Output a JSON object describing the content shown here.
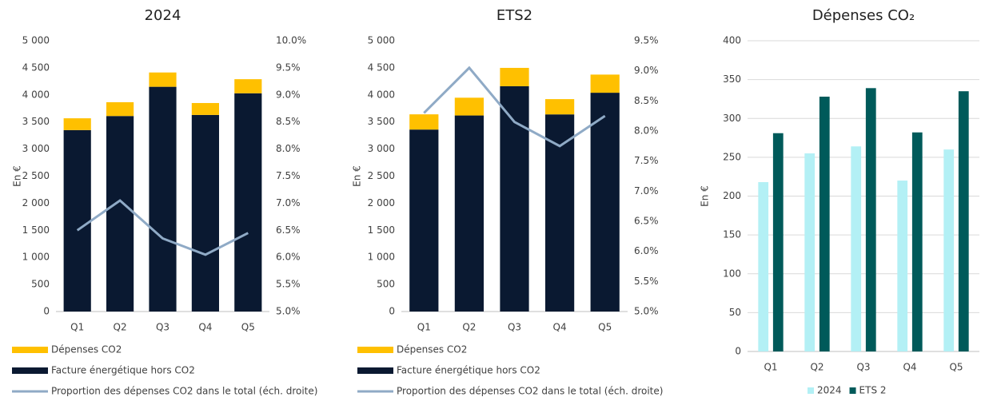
{
  "chart_data": [
    {
      "type": "bar",
      "stacked": true,
      "title": "2024",
      "y_label": "En €",
      "categories": [
        "Q1",
        "Q2",
        "Q3",
        "Q4",
        "Q5"
      ],
      "series": [
        {
          "name": "Facture énergétique hors CO2",
          "color": "#0a1931",
          "values": [
            3350,
            3610,
            4150,
            3630,
            4030
          ]
        },
        {
          "name": "Dépenses CO2",
          "color": "#ffc000",
          "values": [
            218,
            255,
            264,
            220,
            260
          ]
        },
        {
          "name": "Proportion des dépenses CO2 dans le total (éch. droite)",
          "type": "line",
          "axis": "y2",
          "color": "#8faac6",
          "values": [
            6.5,
            7.05,
            6.35,
            6.05,
            6.45
          ]
        }
      ],
      "ylim": [
        0,
        5000
      ],
      "yticks": [
        0,
        500,
        {
          "value": 1000,
          "label": "1 000"
        },
        {
          "value": 1500,
          "label": "1 500"
        },
        {
          "value": 2000,
          "label": "2 000"
        },
        {
          "value": 2500,
          "label": "2 500"
        },
        {
          "value": 3000,
          "label": "3 000"
        },
        {
          "value": 3500,
          "label": "3 500"
        },
        {
          "value": 4000,
          "label": "4 000"
        },
        {
          "value": 4500,
          "label": "4 500"
        },
        {
          "value": 5000,
          "label": "5 000"
        }
      ],
      "y2lim": [
        5.0,
        10.0
      ],
      "y2ticks": [
        {
          "value": 5.0,
          "label": "5.0%"
        },
        {
          "value": 5.5,
          "label": "5.5%"
        },
        {
          "value": 6.0,
          "label": "6.0%"
        },
        {
          "value": 6.5,
          "label": "6.5%"
        },
        {
          "value": 7.0,
          "label": "7.0%"
        },
        {
          "value": 7.5,
          "label": "7.5%"
        },
        {
          "value": 8.0,
          "label": "8.0%"
        },
        {
          "value": 8.5,
          "label": "8.5%"
        },
        {
          "value": 9.0,
          "label": "9.0%"
        },
        {
          "value": 9.5,
          "label": "9.5%"
        },
        {
          "value": 10.0,
          "label": "10.0%"
        }
      ],
      "grid": false,
      "legend": "bottom"
    },
    {
      "type": "bar",
      "stacked": true,
      "title": "ETS2",
      "y_label": "En €",
      "categories": [
        "Q1",
        "Q2",
        "Q3",
        "Q4",
        "Q5"
      ],
      "series": [
        {
          "name": "Facture énergétique hors CO2",
          "color": "#0a1931",
          "values": [
            3360,
            3620,
            4160,
            3640,
            4040
          ]
        },
        {
          "name": "Dépenses CO2",
          "color": "#ffc000",
          "values": [
            281,
            328,
            339,
            282,
            335
          ]
        },
        {
          "name": "Proportion des dépenses CO2 dans le total (éch. droite)",
          "type": "line",
          "axis": "y2",
          "color": "#8faac6",
          "values": [
            8.3,
            9.05,
            8.15,
            7.75,
            8.25
          ]
        }
      ],
      "ylim": [
        0,
        5000
      ],
      "yticks": [
        0,
        500,
        {
          "value": 1000,
          "label": "1 000"
        },
        {
          "value": 1500,
          "label": "1 500"
        },
        {
          "value": 2000,
          "label": "2 000"
        },
        {
          "value": 2500,
          "label": "2 500"
        },
        {
          "value": 3000,
          "label": "3 000"
        },
        {
          "value": 3500,
          "label": "3 500"
        },
        {
          "value": 4000,
          "label": "4 000"
        },
        {
          "value": 4500,
          "label": "4 500"
        },
        {
          "value": 5000,
          "label": "5 000"
        }
      ],
      "y2lim": [
        5.0,
        9.5
      ],
      "y2ticks": [
        {
          "value": 5.0,
          "label": "5.0%"
        },
        {
          "value": 5.5,
          "label": "5.5%"
        },
        {
          "value": 6.0,
          "label": "6.0%"
        },
        {
          "value": 6.5,
          "label": "6.5%"
        },
        {
          "value": 7.0,
          "label": "7.0%"
        },
        {
          "value": 7.5,
          "label": "7.5%"
        },
        {
          "value": 8.0,
          "label": "8.0%"
        },
        {
          "value": 8.5,
          "label": "8.5%"
        },
        {
          "value": 9.0,
          "label": "9.0%"
        },
        {
          "value": 9.5,
          "label": "9.5%"
        }
      ],
      "grid": false,
      "legend": "bottom"
    },
    {
      "type": "bar",
      "stacked": false,
      "title": "Dépenses CO₂",
      "y_label": "En €",
      "categories": [
        "Q1",
        "Q2",
        "Q3",
        "Q4",
        "Q5"
      ],
      "series": [
        {
          "name": "2024",
          "color": "#b3f0f5",
          "values": [
            218,
            255,
            264,
            220,
            260
          ]
        },
        {
          "name": "ETS 2",
          "color": "#005a5a",
          "values": [
            281,
            328,
            339,
            282,
            335
          ]
        }
      ],
      "ylim": [
        0,
        400
      ],
      "yticks": [
        0,
        50,
        100,
        150,
        200,
        250,
        300,
        350,
        400
      ],
      "grid": true,
      "legend": "bottom"
    }
  ]
}
